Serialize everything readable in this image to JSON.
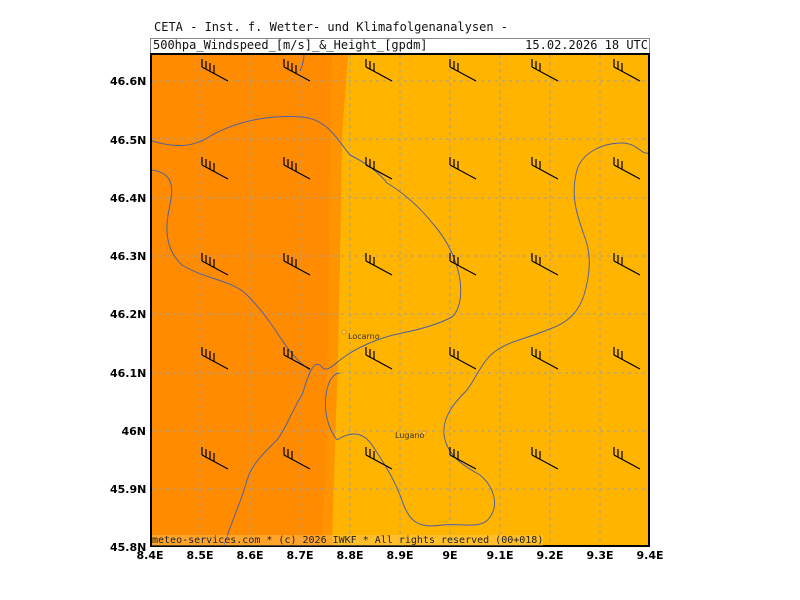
{
  "header": {
    "institute": "CETA - Inst. f. Wetter- und Klimafolgenanalysen -",
    "product": "500hpa_Windspeed_[m/s]_&_Height_[gpdm]",
    "valid_time": "15.02.2026 18 UTC"
  },
  "map": {
    "lat_labels": [
      "46.6N",
      "46.5N",
      "46.4N",
      "46.3N",
      "46.2N",
      "46.1N",
      "46N",
      "45.9N",
      "45.8N"
    ],
    "lon_labels": [
      "8.4E",
      "8.5E",
      "8.6E",
      "8.7E",
      "8.8E",
      "8.9E",
      "9E",
      "9.1E",
      "9.2E",
      "9.3E",
      "9.4E"
    ],
    "cities": [
      {
        "name": "Locarno",
        "lon": 8.79,
        "lat": 46.17
      },
      {
        "name": "Lugano",
        "lon": 8.95,
        "lat": 46.0
      }
    ],
    "colors": {
      "wind_band_high": "#ff8c00",
      "wind_band_low": "#ffb400",
      "gridline": "#a0a0a0",
      "border_line": "#5060a0",
      "barb": "#000000"
    }
  },
  "footer": {
    "credit": "meteo-services.com * (c) 2026 IWKF * All rights reserved (00+018)"
  }
}
